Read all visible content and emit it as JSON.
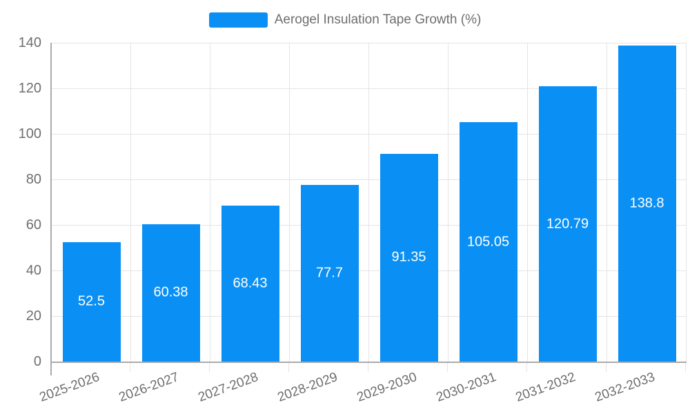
{
  "legend": {
    "label": "Aerogel Insulation Tape Growth (%)"
  },
  "chart_data": {
    "type": "bar",
    "title": "Aerogel Insulation Tape Growth (%)",
    "categories": [
      "2025-2026",
      "2026-2027",
      "2027-2028",
      "2028-2029",
      "2029-2030",
      "2030-2031",
      "2031-2032",
      "2032-2033"
    ],
    "values": [
      52.5,
      60.38,
      68.43,
      77.7,
      91.35,
      105.05,
      120.79,
      138.8
    ],
    "value_labels": [
      "52.5",
      "60.38",
      "68.43",
      "77.7",
      "91.35",
      "105.05",
      "120.79",
      "138.8"
    ],
    "xlabel": "",
    "ylabel": "",
    "ylim": [
      0,
      140
    ],
    "yticks": [
      0,
      20,
      40,
      60,
      80,
      100,
      120,
      140
    ],
    "grid": true,
    "legend_position": "top-center",
    "x_label_rotation_deg": -20,
    "colors": {
      "bar": "#0a90f4",
      "bar_value_text": "#ffffff",
      "axis_text": "#6e6e6e",
      "legend_text": "#6e6e6e",
      "gridline": "#e4e4e4",
      "axis_line": "#aaaaaa"
    }
  }
}
